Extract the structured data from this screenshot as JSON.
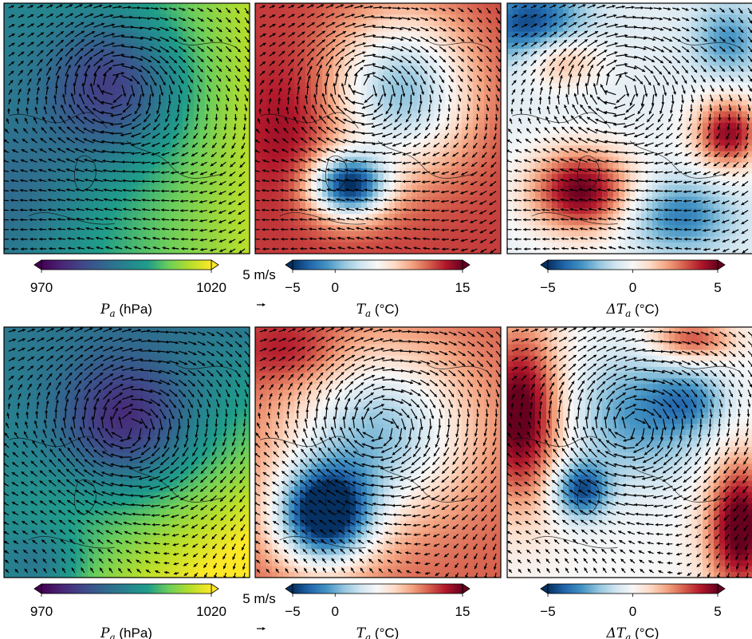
{
  "chart_data": [
    {
      "type": "heatmap",
      "title": "",
      "rows": [
        {
          "panels": [
            {
              "quantity": "Pa",
              "colormap": "viridis",
              "vmin": 970,
              "vmax": 1020,
              "colorbar": {
                "ticks": [
                  "970",
                  "1020"
                ],
                "label_var": "P",
                "label_sub": "a",
                "label_unit": " (hPa)",
                "extend": "both"
              },
              "field": "low-pressure centre upper-left, high pressure toward the right edge"
            },
            {
              "quantity": "Ta",
              "colormap": "RdBu_r",
              "vmin": -5,
              "vmax": 15,
              "colorbar": {
                "ticks": [
                  "−5",
                  "0",
                  "15"
                ],
                "label_var": "T",
                "label_sub": "a",
                "label_unit": " (°C)",
                "extend": "both"
              },
              "field": "cold pool over the Greenland sector, warm surroundings"
            },
            {
              "quantity": "dTa",
              "colormap": "RdBu_r",
              "vmin": -5,
              "vmax": 5,
              "colorbar": {
                "ticks": [
                  "−5",
                  "0",
                  "5"
                ],
                "label_var": "ΔT",
                "label_sub": "a",
                "label_unit": " (°C)",
                "extend": "both"
              },
              "field": "mixed positive and negative anomalies"
            }
          ],
          "quiver_key": {
            "label": "5 m/s",
            "value": 5
          }
        },
        {
          "panels": [
            {
              "quantity": "Pa",
              "colormap": "viridis",
              "vmin": 970,
              "vmax": 1020,
              "colorbar": {
                "ticks": [
                  "970",
                  "1020"
                ],
                "label_var": "P",
                "label_sub": "a",
                "label_unit": " (hPa)",
                "extend": "both"
              },
              "field": "low-pressure centre near the middle, high pressure to the lower right"
            },
            {
              "quantity": "Ta",
              "colormap": "RdBu_r",
              "vmin": -5,
              "vmax": 15,
              "colorbar": {
                "ticks": [
                  "−5",
                  "0",
                  "15"
                ],
                "label_var": "T",
                "label_sub": "a",
                "label_unit": " (°C)",
                "extend": "both"
              },
              "field": "large cold pool lower-left, cool core in the centre"
            },
            {
              "quantity": "dTa",
              "colormap": "RdBu_r",
              "vmin": -5,
              "vmax": 5,
              "colorbar": {
                "ticks": [
                  "−5",
                  "0",
                  "5"
                ],
                "label_var": "ΔT",
                "label_sub": "a",
                "label_unit": " (°C)",
                "extend": "both"
              },
              "field": "warm anomalies on the left and right edges, cool anomalies in the middle"
            }
          ],
          "quiver_key": {
            "label": "5 m/s",
            "value": 5
          }
        }
      ],
      "colors": {
        "viridis": [
          "#440154",
          "#482777",
          "#3f4a8a",
          "#31688e",
          "#26838f",
          "#1f9d8a",
          "#6cce5a",
          "#b6de2b",
          "#fee825"
        ],
        "rdbu_r": [
          "#053061",
          "#2166ac",
          "#4393c3",
          "#92c5de",
          "#d1e5f0",
          "#f7f7f7",
          "#fddbc7",
          "#f4a582",
          "#d6604d",
          "#b2182b",
          "#67001f"
        ]
      }
    }
  ]
}
